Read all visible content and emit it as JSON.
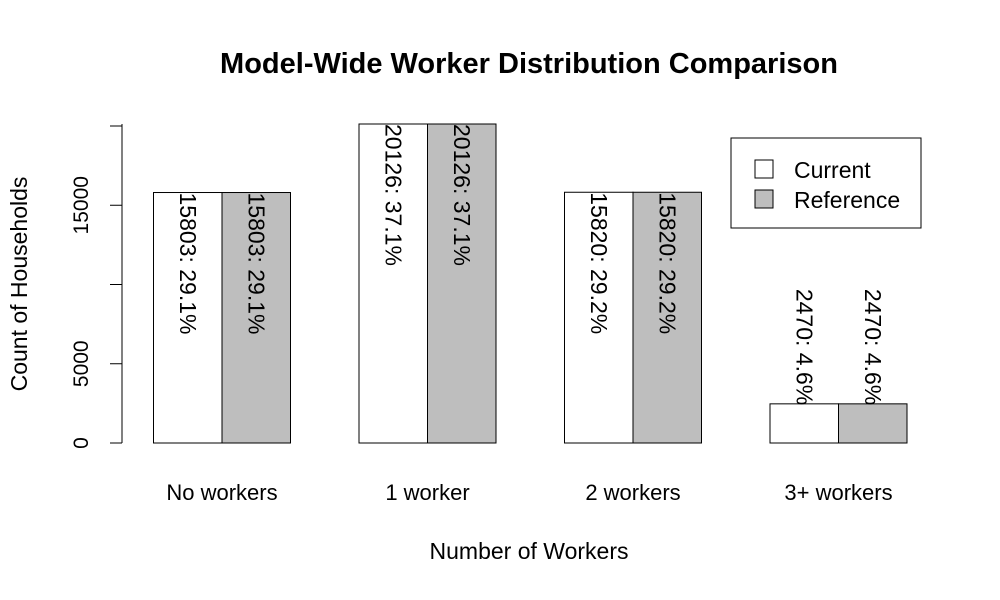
{
  "chart_data": {
    "type": "bar",
    "title": "Model-Wide Worker Distribution Comparison",
    "xlabel": "Number of Workers",
    "ylabel": "Count of Households",
    "categories": [
      "No workers",
      "1 worker",
      "2 workers",
      "3+ workers"
    ],
    "series": [
      {
        "name": "Current",
        "color": "#ffffff",
        "values": [
          15803,
          20126,
          15820,
          2470
        ],
        "labels": [
          "15803:  29.1%",
          "20126:  37.1%",
          "15820:  29.2%",
          "2470:  4.6%"
        ]
      },
      {
        "name": "Reference",
        "color": "#bebebe",
        "values": [
          15803,
          20126,
          15820,
          2470
        ],
        "labels": [
          "15803:  29.1%",
          "20126:  37.1%",
          "15820:  29.2%",
          "2470:  4.6%"
        ]
      }
    ],
    "yticks": [
      0,
      5000,
      15000
    ],
    "ylim": [
      0,
      20126
    ],
    "legend_position": "top-right",
    "grid": false
  }
}
